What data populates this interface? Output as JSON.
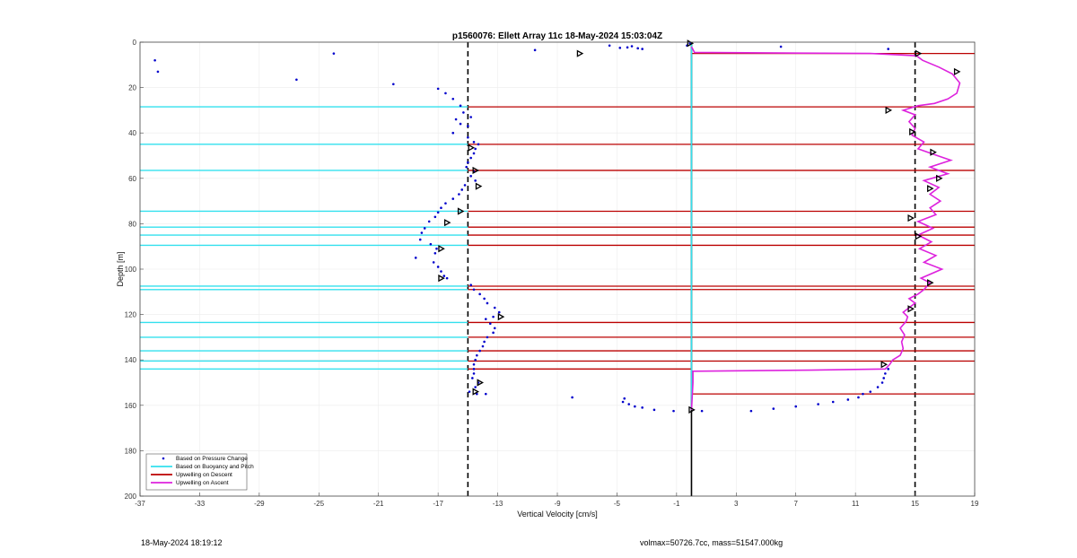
{
  "chart_data": {
    "type": "line",
    "title": "p1560076: Ellett Array 11c 18-May-2024 15:03:04Z",
    "xlabel": "Vertical Velocity [cm/s]",
    "ylabel": "Depth [m]",
    "xlim": [
      -37,
      19
    ],
    "ylim": [
      0,
      200
    ],
    "y_reversed": true,
    "x_ticks": [
      -37,
      -33,
      -29,
      -25,
      -21,
      -17,
      -13,
      -9,
      -5,
      -1,
      3,
      7,
      11,
      15,
      19
    ],
    "y_ticks": [
      0,
      20,
      40,
      60,
      80,
      100,
      120,
      140,
      160,
      180,
      200
    ],
    "grid": true,
    "legend_position": "bottom-left",
    "colors": {
      "pressure": "#0000cc",
      "buoyancy": "#33e0ee",
      "descent": "#bb0000",
      "ascent": "#dd22dd",
      "reference": "#000000"
    },
    "reference_lines": [
      {
        "x": -15,
        "style": "dashed"
      },
      {
        "x": 15,
        "style": "dashed"
      },
      {
        "x": 0,
        "style": "solid",
        "y_from": 0,
        "y_to": 200
      }
    ],
    "legend": [
      "Based on Pressure Change",
      "Based on Buoyancy and Pitch",
      "Upwelling on Descent",
      "Upwelling on Ascent"
    ],
    "series": [
      {
        "name": "Based on Pressure Change",
        "kind": "scatter",
        "points": [
          [
            -36,
            8
          ],
          [
            -35.8,
            13
          ],
          [
            -24,
            5
          ],
          [
            -26.5,
            16.5
          ],
          [
            -20,
            18.5
          ],
          [
            -17,
            20.5
          ],
          [
            -16.5,
            22.5
          ],
          [
            -16,
            25
          ],
          [
            -15.5,
            28
          ],
          [
            -15.3,
            31
          ],
          [
            -14.8,
            33
          ],
          [
            -15.8,
            34
          ],
          [
            -15.5,
            36
          ],
          [
            -15,
            37
          ],
          [
            -16,
            40
          ],
          [
            -15,
            42
          ],
          [
            -14.6,
            44
          ],
          [
            -14.3,
            45
          ],
          [
            -14.5,
            47
          ],
          [
            -14.6,
            49
          ],
          [
            -14.8,
            51
          ],
          [
            -15,
            53
          ],
          [
            -15.1,
            55
          ],
          [
            -14.6,
            57
          ],
          [
            -14.8,
            59
          ],
          [
            -14.5,
            61
          ],
          [
            -15.2,
            63
          ],
          [
            -15.4,
            65
          ],
          [
            -15.6,
            67
          ],
          [
            -16,
            69
          ],
          [
            -16.5,
            71
          ],
          [
            -16.8,
            73
          ],
          [
            -17,
            75
          ],
          [
            -17.2,
            77
          ],
          [
            -17.6,
            79
          ],
          [
            -17.9,
            82
          ],
          [
            -18.1,
            84
          ],
          [
            -18.2,
            87
          ],
          [
            -17.5,
            89
          ],
          [
            -17.1,
            91
          ],
          [
            -17.2,
            93
          ],
          [
            -18.5,
            95
          ],
          [
            -17.3,
            97
          ],
          [
            -17.0,
            99
          ],
          [
            -16.8,
            101
          ],
          [
            -16.6,
            103
          ],
          [
            -16.4,
            104
          ],
          [
            -14.8,
            107
          ],
          [
            -14.6,
            109
          ],
          [
            -14.2,
            111
          ],
          [
            -13.9,
            113
          ],
          [
            -13.7,
            115
          ],
          [
            -13.2,
            117
          ],
          [
            -12.9,
            119
          ],
          [
            -13.3,
            121
          ],
          [
            -13.8,
            122
          ],
          [
            -13.5,
            124
          ],
          [
            -13.2,
            126
          ],
          [
            -13.3,
            128
          ],
          [
            -13.7,
            130
          ],
          [
            -13.9,
            132
          ],
          [
            -14.0,
            134
          ],
          [
            -14.2,
            136
          ],
          [
            -14.4,
            138
          ],
          [
            -14.5,
            140
          ],
          [
            -14.6,
            142
          ],
          [
            -14.6,
            144
          ],
          [
            -14.6,
            146
          ],
          [
            -14.7,
            148
          ],
          [
            -14.3,
            150
          ],
          [
            -14.5,
            152
          ],
          [
            -14.9,
            154
          ],
          [
            -14.4,
            155
          ],
          [
            -13.8,
            155
          ],
          [
            -8,
            156.5
          ],
          [
            -4.5,
            157
          ],
          [
            -4.6,
            158.5
          ],
          [
            -4.2,
            159.5
          ],
          [
            -3.8,
            160.5
          ],
          [
            -3.3,
            161
          ],
          [
            -2.5,
            162
          ],
          [
            -1.2,
            162.5
          ],
          [
            0.7,
            162.5
          ],
          [
            4.0,
            162.5
          ],
          [
            5.5,
            161.5
          ],
          [
            7.0,
            160.5
          ],
          [
            8.5,
            159.5
          ],
          [
            9.5,
            158.5
          ],
          [
            10.5,
            157.5
          ],
          [
            11.2,
            156.5
          ],
          [
            11.5,
            155
          ],
          [
            12.0,
            154
          ],
          [
            12.5,
            152
          ],
          [
            12.8,
            150
          ],
          [
            12.9,
            148
          ],
          [
            13.0,
            146
          ],
          [
            13.2,
            144
          ],
          [
            -10.5,
            3.5
          ],
          [
            -5.5,
            1.5
          ],
          [
            -4.8,
            2.5
          ],
          [
            -4.3,
            2.3
          ],
          [
            -4.0,
            1.8
          ],
          [
            -3.6,
            2.7
          ],
          [
            -3.3,
            3
          ],
          [
            -0.3,
            1.5
          ],
          [
            -0.1,
            0.5
          ],
          [
            6,
            2
          ],
          [
            13.2,
            3
          ]
        ]
      },
      {
        "name": "Based on Buoyancy and Pitch",
        "kind": "line",
        "x": [
          0,
          0
        ],
        "y": [
          1,
          162
        ]
      },
      {
        "name": "Upwelling on Descent",
        "kind": "segments",
        "left_x": -37,
        "right_x": 0,
        "depths": [
          28.5,
          45,
          56.5,
          74.5,
          81.5,
          85,
          89.5,
          107.5,
          109,
          123.5,
          130,
          136,
          140.5,
          144
        ]
      },
      {
        "name": "Upwelling on Descent (ascent side)",
        "kind": "segments",
        "left_x": 0,
        "right_x": 19,
        "depths": [
          5,
          28.5,
          45,
          56.5,
          74.5,
          81.5,
          85,
          89.5,
          107.5,
          109,
          123.5,
          130,
          136,
          140.5,
          155
        ]
      },
      {
        "name": "Upwelling on Ascent",
        "kind": "line",
        "points": [
          [
            0,
            162
          ],
          [
            0.1,
            150
          ],
          [
            0.1,
            145
          ],
          [
            8,
            144.5
          ],
          [
            13.0,
            144
          ],
          [
            13.3,
            142
          ],
          [
            13.5,
            140
          ],
          [
            14.0,
            138
          ],
          [
            14.2,
            135
          ],
          [
            14.1,
            132
          ],
          [
            14.3,
            129
          ],
          [
            14.0,
            126
          ],
          [
            14.4,
            123
          ],
          [
            14.5,
            121
          ],
          [
            14.2,
            119
          ],
          [
            14.6,
            117
          ],
          [
            15.0,
            115
          ],
          [
            14.6,
            113
          ],
          [
            15.2,
            111
          ],
          [
            15.6,
            109
          ],
          [
            16.0,
            106
          ],
          [
            15.4,
            104
          ],
          [
            16.8,
            100
          ],
          [
            15.6,
            97
          ],
          [
            16.4,
            94
          ],
          [
            15.3,
            91
          ],
          [
            16.1,
            88
          ],
          [
            15.2,
            85
          ],
          [
            16.2,
            82
          ],
          [
            15.2,
            79
          ],
          [
            16.4,
            76
          ],
          [
            16.0,
            73
          ],
          [
            16.7,
            70
          ],
          [
            16.0,
            67
          ],
          [
            16.6,
            64
          ],
          [
            15.6,
            61
          ],
          [
            17.2,
            58
          ],
          [
            16.0,
            55
          ],
          [
            17.4,
            52
          ],
          [
            16.5,
            50
          ],
          [
            15.2,
            47
          ],
          [
            15.6,
            44
          ],
          [
            14.8,
            41
          ],
          [
            15.0,
            38
          ],
          [
            14.6,
            35
          ],
          [
            15.0,
            32
          ],
          [
            14.2,
            30
          ],
          [
            15.2,
            28
          ],
          [
            16.3,
            27
          ],
          [
            17.2,
            25
          ],
          [
            17.8,
            22.5
          ],
          [
            18.0,
            18
          ],
          [
            17.5,
            14
          ],
          [
            16.6,
            11
          ],
          [
            15.5,
            8
          ],
          [
            15.1,
            6
          ],
          [
            12.0,
            5
          ],
          [
            6.0,
            4.8
          ],
          [
            0.2,
            4.5
          ],
          [
            0,
            2
          ]
        ]
      }
    ],
    "markers": [
      [
        -0.1,
        0.5
      ],
      [
        -7.5,
        5
      ],
      [
        15.2,
        5
      ],
      [
        17.8,
        13
      ],
      [
        13.2,
        30
      ],
      [
        14.8,
        39.5
      ],
      [
        -14.8,
        46.5
      ],
      [
        16.2,
        48.5
      ],
      [
        -14.5,
        56.5
      ],
      [
        16.6,
        60
      ],
      [
        -14.3,
        63.5
      ],
      [
        16.0,
        64.5
      ],
      [
        -15.5,
        74.5
      ],
      [
        14.7,
        77.5
      ],
      [
        -16.4,
        79.5
      ],
      [
        15.2,
        85.5
      ],
      [
        -16.8,
        91
      ],
      [
        16.0,
        106
      ],
      [
        -16.8,
        104
      ],
      [
        -12.8,
        121
      ],
      [
        14.7,
        117.5
      ],
      [
        12.9,
        142
      ],
      [
        -14.5,
        154
      ],
      [
        -14.2,
        150
      ],
      [
        0,
        162
      ]
    ]
  },
  "footer": {
    "timestamp": "18-May-2024 18:19:12",
    "info": "volmax=50726.7cc, mass=51547.000kg"
  }
}
